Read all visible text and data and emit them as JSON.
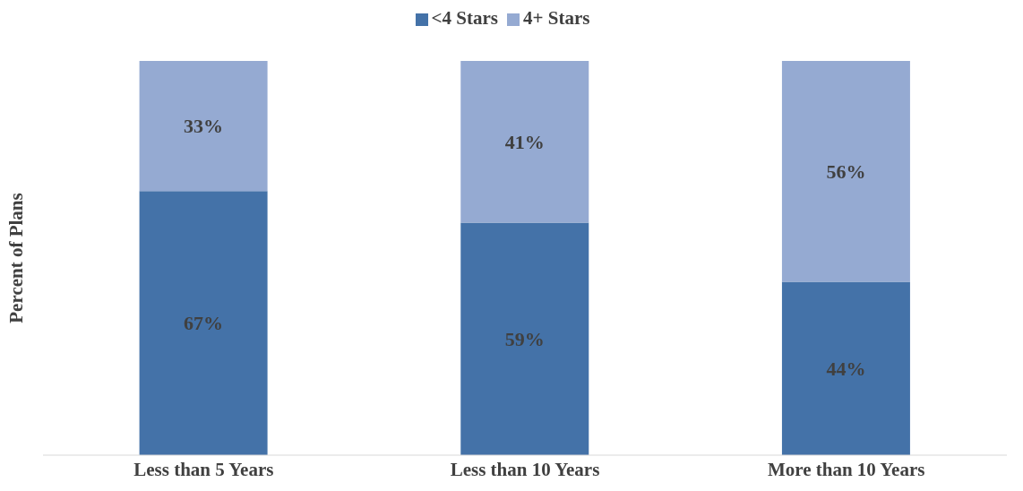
{
  "chart_data": {
    "type": "bar",
    "stacked": true,
    "ylabel": "Percent of Plans",
    "legend": "top",
    "categories": [
      "Less than 5 Years",
      "Less than 10 Years",
      "More than 10 Years"
    ],
    "series": [
      {
        "name": "<4 Stars",
        "color": "#4472a8",
        "values": [
          67,
          59,
          44
        ],
        "value_labels": [
          "67%",
          "59%",
          "44%"
        ]
      },
      {
        "name": "4+ Stars",
        "color": "#95aad2",
        "values": [
          33,
          41,
          56
        ],
        "value_labels": [
          "33%",
          "41%",
          "56%"
        ]
      }
    ]
  }
}
